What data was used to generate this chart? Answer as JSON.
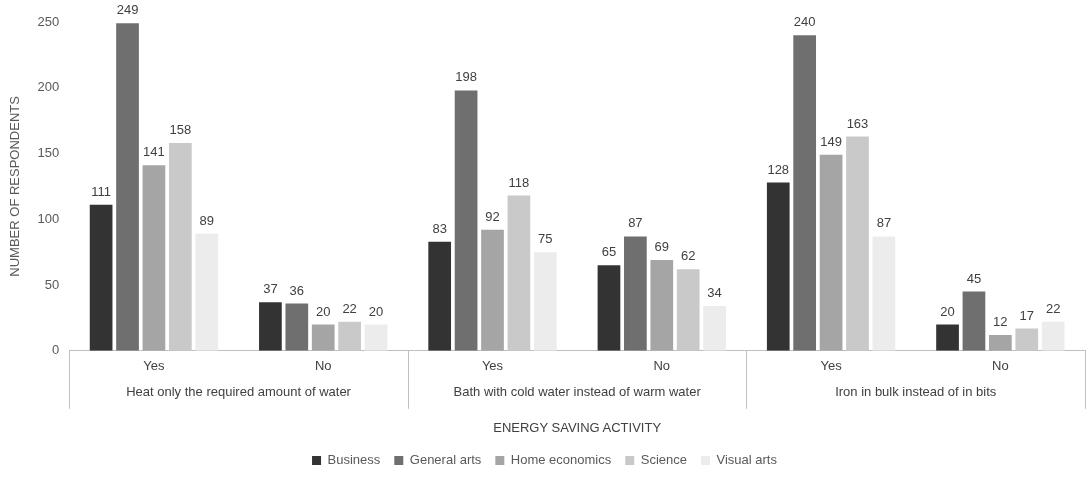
{
  "chart_data": {
    "type": "bar",
    "xlabel": "ENERGY SAVING ACTIVITY",
    "ylabel": "NUMBER OF RESPONDENTS",
    "categories": [
      "Yes",
      "No",
      "Yes",
      "No",
      "Yes",
      "No"
    ],
    "annotations": [
      "Heat only the required amount of water",
      "Bath with cold water instead of warm water",
      "Iron in bulk instead of in bits"
    ],
    "series": [
      {
        "name": "Business",
        "color": "#333333",
        "values": [
          111,
          37,
          83,
          65,
          128,
          20
        ]
      },
      {
        "name": "General arts",
        "color": "#6f6f6f",
        "values": [
          249,
          36,
          198,
          87,
          240,
          45
        ]
      },
      {
        "name": "Home economics",
        "color": "#a5a5a5",
        "values": [
          141,
          20,
          92,
          69,
          149,
          12
        ]
      },
      {
        "name": "Science",
        "color": "#c9c9c9",
        "values": [
          158,
          22,
          118,
          62,
          163,
          17
        ]
      },
      {
        "name": "Visual arts",
        "color": "#ececec",
        "values": [
          89,
          20,
          75,
          34,
          87,
          22
        ]
      }
    ],
    "ylim": [
      0,
      250
    ],
    "yticks": [
      0,
      50,
      100,
      150,
      200,
      250
    ],
    "grid": false,
    "legend": "bottom",
    "data_labels": true
  }
}
